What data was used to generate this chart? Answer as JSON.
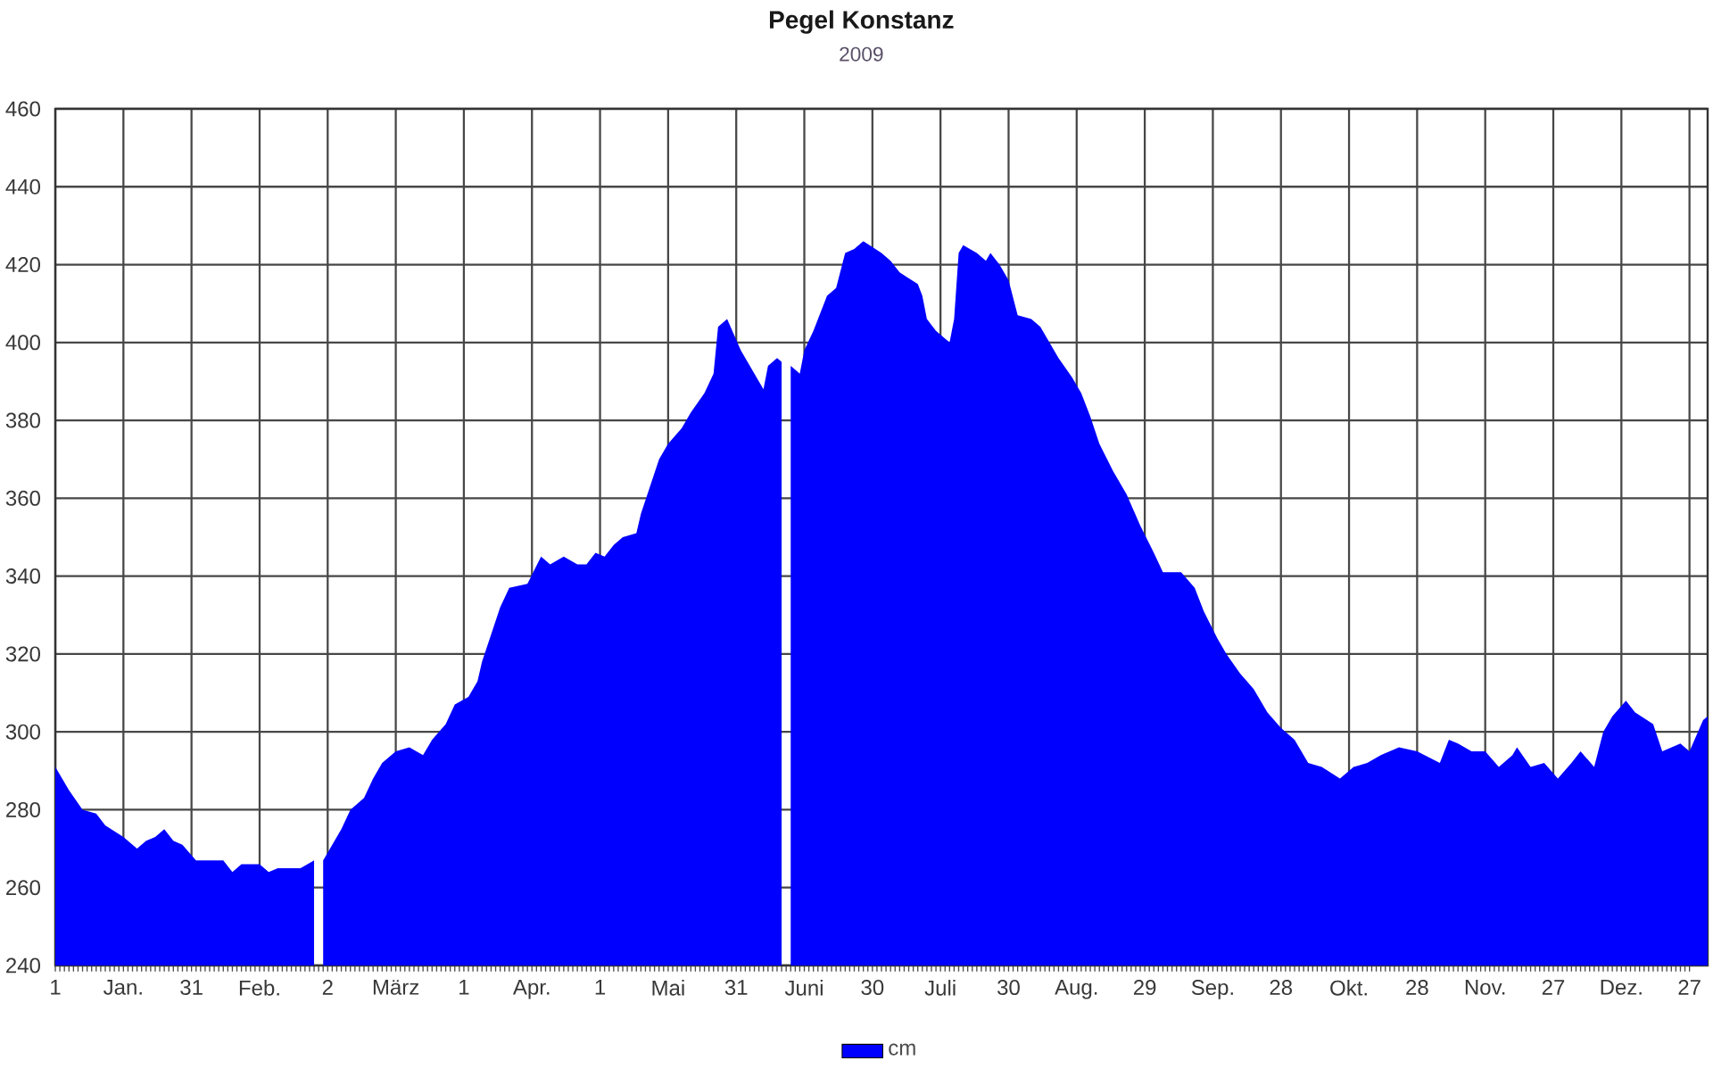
{
  "chart_data": {
    "type": "area",
    "title": "Pegel Konstanz",
    "subtitle": "2009",
    "x": [
      "2009-01-01",
      "2009-01-04",
      "2009-01-07",
      "2009-01-10",
      "2009-01-12",
      "2009-01-16",
      "2009-01-19",
      "2009-01-21",
      "2009-01-23",
      "2009-01-25",
      "2009-01-27",
      "2009-01-29",
      "2009-02-01",
      "2009-02-07",
      "2009-02-09",
      "2009-02-11",
      "2009-02-15",
      "2009-02-17",
      "2009-02-19",
      "2009-02-24",
      "2009-02-27",
      "2009-02-28",
      "2009-03-01",
      "2009-03-03",
      "2009-03-05",
      "2009-03-07",
      "2009-03-10",
      "2009-03-12",
      "2009-03-14",
      "2009-03-17",
      "2009-03-20",
      "2009-03-23",
      "2009-03-25",
      "2009-03-28",
      "2009-03-30",
      "2009-04-02",
      "2009-04-04",
      "2009-04-05",
      "2009-04-07",
      "2009-04-09",
      "2009-04-11",
      "2009-04-15",
      "2009-04-18",
      "2009-04-20",
      "2009-04-23",
      "2009-04-26",
      "2009-04-28",
      "2009-04-30",
      "2009-05-02",
      "2009-05-04",
      "2009-05-06",
      "2009-05-09",
      "2009-05-10",
      "2009-05-12",
      "2009-05-14",
      "2009-05-16",
      "2009-05-19",
      "2009-05-21",
      "2009-05-24",
      "2009-05-26",
      "2009-05-27",
      "2009-05-29",
      "2009-06-01",
      "2009-06-04",
      "2009-06-06",
      "2009-06-07",
      "2009-06-09",
      "2009-06-10",
      "2009-06-11",
      "2009-06-12",
      "2009-06-14",
      "2009-06-15",
      "2009-06-17",
      "2009-06-20",
      "2009-06-22",
      "2009-06-24",
      "2009-06-26",
      "2009-06-28",
      "2009-07-02",
      "2009-07-04",
      "2009-07-06",
      "2009-07-10",
      "2009-07-11",
      "2009-07-12",
      "2009-07-14",
      "2009-07-17",
      "2009-07-18",
      "2009-07-19",
      "2009-07-20",
      "2009-07-23",
      "2009-07-25",
      "2009-07-26",
      "2009-07-28",
      "2009-07-30",
      "2009-08-01",
      "2009-08-04",
      "2009-08-06",
      "2009-08-08",
      "2009-08-10",
      "2009-08-13",
      "2009-08-15",
      "2009-08-17",
      "2009-08-19",
      "2009-08-22",
      "2009-08-25",
      "2009-08-28",
      "2009-08-31",
      "2009-09-02",
      "2009-09-06",
      "2009-09-09",
      "2009-09-11",
      "2009-09-14",
      "2009-09-16",
      "2009-09-19",
      "2009-09-22",
      "2009-09-25",
      "2009-09-28",
      "2009-10-01",
      "2009-10-04",
      "2009-10-07",
      "2009-10-11",
      "2009-10-14",
      "2009-10-17",
      "2009-10-20",
      "2009-10-24",
      "2009-10-28",
      "2009-11-02",
      "2009-11-04",
      "2009-11-06",
      "2009-11-09",
      "2009-11-12",
      "2009-11-15",
      "2009-11-18",
      "2009-11-19",
      "2009-11-22",
      "2009-11-25",
      "2009-11-28",
      "2009-12-01",
      "2009-12-03",
      "2009-12-06",
      "2009-12-08",
      "2009-12-10",
      "2009-12-13",
      "2009-12-15",
      "2009-12-19",
      "2009-12-21",
      "2009-12-25",
      "2009-12-27",
      "2009-12-30",
      "2009-12-31"
    ],
    "series": [
      {
        "name": "cm",
        "color": "#0000ff",
        "values": [
          291,
          285,
          280,
          279,
          276,
          273,
          270,
          272,
          273,
          275,
          272,
          271,
          267,
          267,
          264,
          266,
          266,
          264,
          265,
          265,
          267,
          null,
          267,
          271,
          275,
          280,
          283,
          288,
          292,
          295,
          296,
          294,
          298,
          302,
          307,
          309,
          313,
          318,
          325,
          332,
          337,
          338,
          345,
          343,
          345,
          343,
          343,
          346,
          345,
          348,
          350,
          351,
          356,
          363,
          370,
          374,
          378,
          382,
          387,
          392,
          404,
          406,
          398,
          392,
          388,
          394,
          396,
          395,
          null,
          394,
          392,
          398,
          403,
          412,
          414,
          423,
          424,
          426,
          423,
          421,
          418,
          415,
          412,
          406,
          403,
          400,
          406,
          423,
          425,
          423,
          421,
          423,
          420,
          416,
          407,
          406,
          404,
          400,
          396,
          391,
          387,
          381,
          374,
          367,
          361,
          353,
          346,
          341,
          341,
          337,
          331,
          324,
          320,
          315,
          311,
          305,
          301,
          298,
          292,
          291,
          288,
          291,
          292,
          294,
          296,
          295,
          292,
          298,
          297,
          295,
          295,
          291,
          294,
          296,
          291,
          292,
          288,
          292,
          295,
          291,
          300,
          304,
          308,
          305,
          302,
          295,
          297,
          295,
          303,
          304
        ]
      }
    ],
    "xlim": [
      "2009-01-01",
      "2009-12-31"
    ],
    "ylim": [
      240,
      460
    ],
    "xticks": [
      {
        "value": "2009-01-01",
        "label": "1"
      },
      {
        "value": "2009-01-16",
        "label": "Jan."
      },
      {
        "value": "2009-01-31",
        "label": "31"
      },
      {
        "value": "2009-02-15",
        "label": "Feb."
      },
      {
        "value": "2009-03-02",
        "label": "2"
      },
      {
        "value": "2009-03-17",
        "label": "März"
      },
      {
        "value": "2009-04-01",
        "label": "1"
      },
      {
        "value": "2009-04-16",
        "label": "Apr."
      },
      {
        "value": "2009-05-01",
        "label": "1"
      },
      {
        "value": "2009-05-16",
        "label": "Mai"
      },
      {
        "value": "2009-05-31",
        "label": "31"
      },
      {
        "value": "2009-06-15",
        "label": "Juni"
      },
      {
        "value": "2009-06-30",
        "label": "30"
      },
      {
        "value": "2009-07-15",
        "label": "Juli"
      },
      {
        "value": "2009-07-30",
        "label": "30"
      },
      {
        "value": "2009-08-14",
        "label": "Aug."
      },
      {
        "value": "2009-08-29",
        "label": "29"
      },
      {
        "value": "2009-09-13",
        "label": "Sep."
      },
      {
        "value": "2009-09-28",
        "label": "28"
      },
      {
        "value": "2009-10-13",
        "label": "Okt."
      },
      {
        "value": "2009-10-28",
        "label": "28"
      },
      {
        "value": "2009-11-12",
        "label": "Nov."
      },
      {
        "value": "2009-11-27",
        "label": "27"
      },
      {
        "value": "2009-12-12",
        "label": "Dez."
      },
      {
        "value": "2009-12-27",
        "label": "27"
      }
    ],
    "yticks": [
      240,
      260,
      280,
      300,
      320,
      340,
      360,
      380,
      400,
      420,
      440,
      460
    ],
    "grid": true,
    "legend": "bottom"
  }
}
